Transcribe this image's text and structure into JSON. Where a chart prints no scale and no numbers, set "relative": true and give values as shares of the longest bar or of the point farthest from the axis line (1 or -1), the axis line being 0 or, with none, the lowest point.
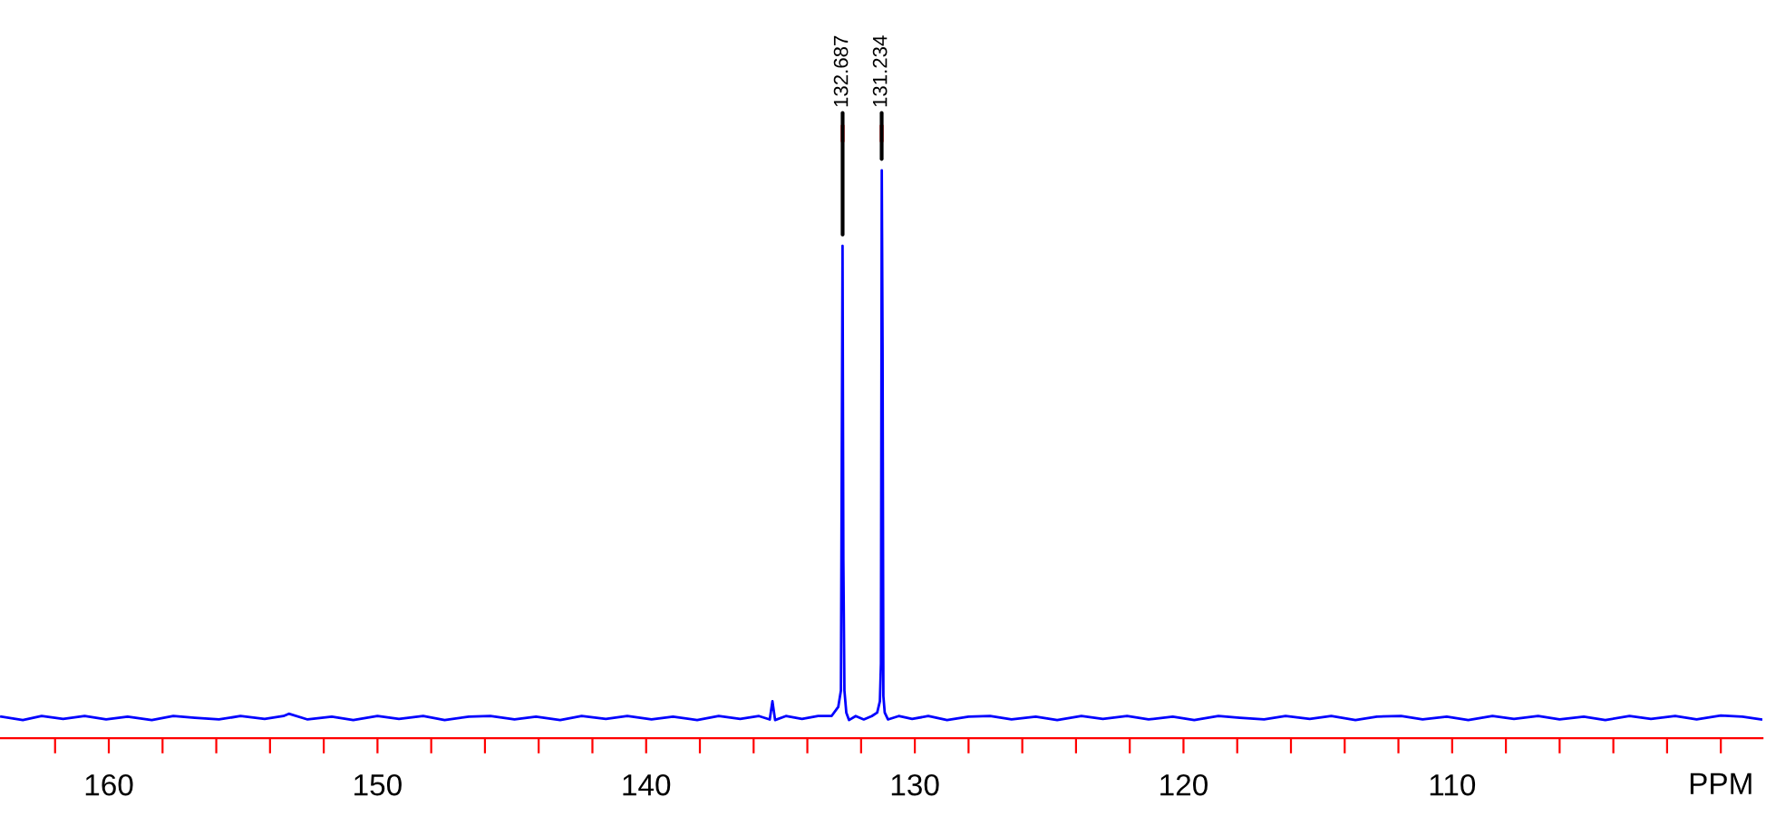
{
  "chart_data": {
    "type": "line",
    "relative": true,
    "xlabel": "PPM",
    "xlim": [
      164.05,
      98.45
    ],
    "xticks": [
      {
        "value": 162,
        "label": null
      },
      {
        "value": 160,
        "label": "160"
      },
      {
        "value": 158,
        "label": null
      },
      {
        "value": 156,
        "label": null
      },
      {
        "value": 154,
        "label": null
      },
      {
        "value": 152,
        "label": null
      },
      {
        "value": 150,
        "label": "150"
      },
      {
        "value": 148,
        "label": null
      },
      {
        "value": 146,
        "label": null
      },
      {
        "value": 144,
        "label": null
      },
      {
        "value": 142,
        "label": null
      },
      {
        "value": 140,
        "label": "140"
      },
      {
        "value": 138,
        "label": null
      },
      {
        "value": 136,
        "label": null
      },
      {
        "value": 134,
        "label": null
      },
      {
        "value": 132,
        "label": null
      },
      {
        "value": 130,
        "label": "130"
      },
      {
        "value": 128,
        "label": null
      },
      {
        "value": 126,
        "label": null
      },
      {
        "value": 124,
        "label": null
      },
      {
        "value": 122,
        "label": null
      },
      {
        "value": 120,
        "label": "120"
      },
      {
        "value": 118,
        "label": null
      },
      {
        "value": 116,
        "label": null
      },
      {
        "value": 114,
        "label": null
      },
      {
        "value": 112,
        "label": null
      },
      {
        "value": 110,
        "label": "110"
      },
      {
        "value": 108,
        "label": null
      },
      {
        "value": 106,
        "label": null
      },
      {
        "value": 104,
        "label": null
      },
      {
        "value": 102,
        "label": null
      },
      {
        "value": 100,
        "label": null
      }
    ],
    "grid": false,
    "legend": false,
    "marker": "none",
    "line_style": "solid",
    "series": [
      {
        "color": "#0000ff",
        "x": [
          164.0,
          163.2,
          162.5,
          161.7,
          160.9,
          160.1,
          159.3,
          158.4,
          157.6,
          156.8,
          155.9,
          155.1,
          154.2,
          153.5,
          153.3,
          152.6,
          151.7,
          150.9,
          150.0,
          149.2,
          148.3,
          147.5,
          146.6,
          145.8,
          144.9,
          144.1,
          143.2,
          142.4,
          141.5,
          140.7,
          139.8,
          139.0,
          138.1,
          137.3,
          136.5,
          135.8,
          135.4,
          135.3,
          135.2,
          134.8,
          134.2,
          133.6,
          133.1,
          132.85,
          132.75,
          132.69,
          132.66,
          132.62,
          132.55,
          132.45,
          132.2,
          131.9,
          131.6,
          131.4,
          131.3,
          131.26,
          131.23,
          131.2,
          131.17,
          131.12,
          131.0,
          130.6,
          130.1,
          129.5,
          128.8,
          128.0,
          127.2,
          126.4,
          125.5,
          124.7,
          123.8,
          123.0,
          122.1,
          121.3,
          120.4,
          119.6,
          118.7,
          117.9,
          117.0,
          116.2,
          115.3,
          114.5,
          113.6,
          112.8,
          111.9,
          111.1,
          110.2,
          109.4,
          108.5,
          107.7,
          106.8,
          106.0,
          105.1,
          104.3,
          103.4,
          102.6,
          101.7,
          100.9,
          100.0,
          99.2,
          98.5
        ],
        "values": [
          0.038,
          0.032,
          0.039,
          0.034,
          0.039,
          0.033,
          0.038,
          0.032,
          0.039,
          0.036,
          0.033,
          0.039,
          0.034,
          0.039,
          0.043,
          0.033,
          0.038,
          0.032,
          0.039,
          0.034,
          0.039,
          0.032,
          0.038,
          0.039,
          0.033,
          0.038,
          0.032,
          0.039,
          0.034,
          0.039,
          0.033,
          0.038,
          0.032,
          0.039,
          0.034,
          0.039,
          0.033,
          0.065,
          0.032,
          0.039,
          0.034,
          0.039,
          0.039,
          0.055,
          0.084,
          0.867,
          0.315,
          0.084,
          0.045,
          0.032,
          0.039,
          0.033,
          0.039,
          0.045,
          0.065,
          0.132,
          1.0,
          0.682,
          0.074,
          0.045,
          0.033,
          0.039,
          0.034,
          0.039,
          0.032,
          0.038,
          0.039,
          0.033,
          0.038,
          0.032,
          0.039,
          0.034,
          0.039,
          0.033,
          0.038,
          0.032,
          0.039,
          0.036,
          0.033,
          0.039,
          0.034,
          0.039,
          0.032,
          0.038,
          0.039,
          0.033,
          0.038,
          0.032,
          0.039,
          0.034,
          0.039,
          0.033,
          0.038,
          0.032,
          0.039,
          0.034,
          0.039,
          0.033,
          0.04,
          0.038,
          0.033
        ]
      }
    ],
    "annotations": [
      {
        "text": "132.687",
        "x": 132.687,
        "y": 0.867
      },
      {
        "text": "131.234",
        "x": 131.234,
        "y": 1.0
      }
    ]
  }
}
